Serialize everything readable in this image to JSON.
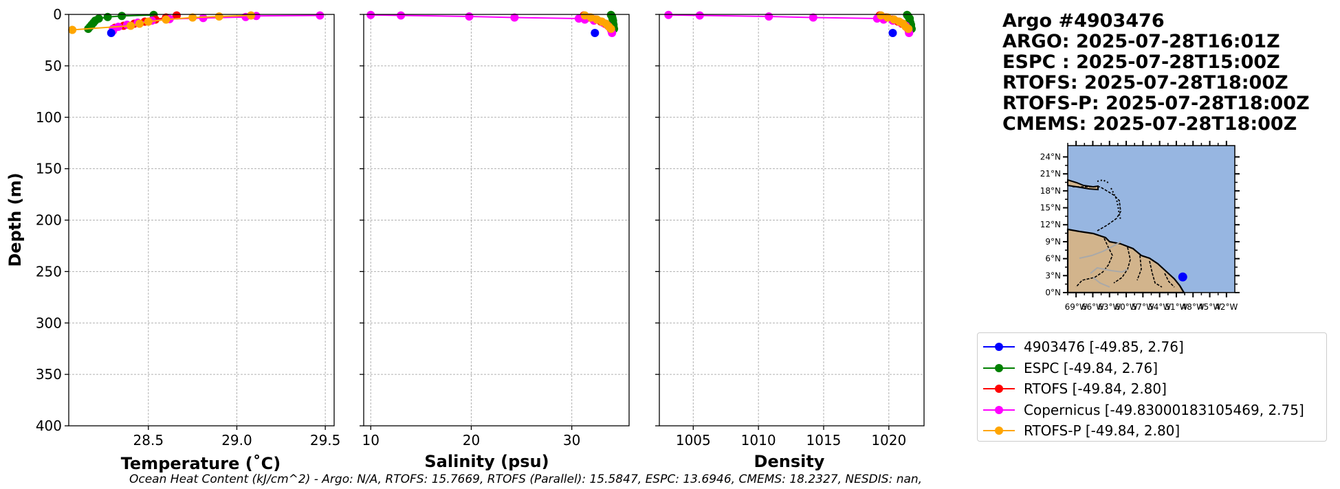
{
  "header": {
    "lines": [
      "Argo #4903476",
      "ARGO: 2025-07-28T16:01Z",
      "ESPC : 2025-07-28T15:00Z",
      "RTOFS: 2025-07-28T18:00Z",
      "RTOFS-P: 2025-07-28T18:00Z",
      "CMEMS: 2025-07-28T18:00Z"
    ]
  },
  "legend": [
    {
      "label": "4903476 [-49.85, 2.76]",
      "color": "#0000ff"
    },
    {
      "label": "ESPC [-49.84, 2.76]",
      "color": "#008000"
    },
    {
      "label": "RTOFS [-49.84, 2.80]",
      "color": "#ff0000"
    },
    {
      "label": "Copernicus [-49.83000183105469, 2.75]",
      "color": "#ff00ff"
    },
    {
      "label": "RTOFS-P [-49.84, 2.80]",
      "color": "#ffa500"
    }
  ],
  "footnote": "Ocean Heat Content (kJ/cm^2) - Argo: N/A,  RTOFS: 15.7669,  RTOFS (Parallel): 15.5847,  ESPC: 13.6946,  CMEMS: 18.2327,  NESDIS: nan,",
  "map": {
    "lat_ticks": [
      "0°N",
      "3°N",
      "6°N",
      "9°N",
      "12°N",
      "15°N",
      "18°N",
      "21°N",
      "24°N"
    ],
    "lon_ticks": [
      "69°W",
      "66°W",
      "63°W",
      "60°W",
      "57°W",
      "54°W",
      "51°W",
      "48°W",
      "45°W",
      "42°W"
    ],
    "float_position": {
      "lon": -49.85,
      "lat": 2.76
    },
    "ocean_color": "#97b6e1",
    "land_color": "#d2b48c"
  },
  "chart_data": [
    {
      "type": "line",
      "xlabel": "Temperature (˚C)",
      "ylabel": "Depth (m)",
      "xlim": [
        28.05,
        29.55
      ],
      "ylim": [
        400,
        0
      ],
      "xticks": [
        28.5,
        29.0,
        29.5
      ],
      "xtick_labels": [
        "28.5",
        "29.0",
        "29.5"
      ],
      "yticks": [
        0,
        50,
        100,
        150,
        200,
        250,
        300,
        350,
        400
      ],
      "ytick_labels": [
        "0",
        "50",
        "100",
        "150",
        "200",
        "250",
        "300",
        "350",
        "400"
      ],
      "grid": true,
      "series": [
        {
          "name": "ESPC",
          "color": "#008000",
          "points": [
            [
              28.53,
              0.5
            ],
            [
              28.35,
              1.5
            ],
            [
              28.27,
              2.5
            ],
            [
              28.22,
              4
            ],
            [
              28.2,
              6
            ],
            [
              28.19,
              8
            ],
            [
              28.18,
              10
            ],
            [
              28.17,
              12
            ],
            [
              28.16,
              14
            ]
          ]
        },
        {
          "name": "RTOFS",
          "color": "#ff0000",
          "points": [
            [
              28.66,
              1
            ],
            [
              28.6,
              3
            ],
            [
              28.54,
              5
            ],
            [
              28.48,
              7
            ],
            [
              28.42,
              9
            ],
            [
              28.36,
              11
            ],
            [
              28.31,
              13
            ]
          ]
        },
        {
          "name": "Copernicus",
          "color": "#ff00ff",
          "points": [
            [
              29.47,
              1
            ],
            [
              29.11,
              1.5
            ],
            [
              29.05,
              2.5
            ],
            [
              28.81,
              3.5
            ],
            [
              28.62,
              4.5
            ],
            [
              28.52,
              6
            ],
            [
              28.44,
              8
            ],
            [
              28.38,
              10
            ],
            [
              28.33,
              12
            ],
            [
              28.3,
              14
            ],
            [
              28.3,
              16
            ]
          ]
        },
        {
          "name": "RTOFS-P",
          "color": "#ffa500",
          "points": [
            [
              29.08,
              1
            ],
            [
              28.9,
              2
            ],
            [
              28.75,
              3
            ],
            [
              28.6,
              5
            ],
            [
              28.5,
              7
            ],
            [
              28.45,
              9
            ],
            [
              28.4,
              11
            ],
            [
              28.07,
              15
            ]
          ]
        },
        {
          "name": "4903476",
          "color": "#0000ff",
          "points": [
            [
              28.29,
              18
            ]
          ]
        }
      ]
    },
    {
      "type": "line",
      "xlabel": "Salinity (psu)",
      "ylabel": "",
      "xlim": [
        9.3,
        35.7
      ],
      "ylim": [
        400,
        0
      ],
      "xticks": [
        10,
        20,
        30
      ],
      "xtick_labels": [
        "10",
        "20",
        "30"
      ],
      "yticks": [
        0,
        50,
        100,
        150,
        200,
        250,
        300,
        350,
        400
      ],
      "grid": true,
      "series": [
        {
          "name": "ESPC",
          "color": "#008000",
          "points": [
            [
              33.9,
              0.5
            ],
            [
              34.0,
              2
            ],
            [
              34.05,
              4
            ],
            [
              34.1,
              6
            ],
            [
              34.1,
              8
            ],
            [
              34.15,
              10
            ],
            [
              34.15,
              12
            ],
            [
              34.2,
              14
            ]
          ]
        },
        {
          "name": "RTOFS",
          "color": "#ff0000",
          "points": [
            [
              31.2,
              1
            ],
            [
              31.8,
              3
            ],
            [
              32.4,
              5
            ],
            [
              32.9,
              7
            ],
            [
              33.3,
              9
            ],
            [
              33.6,
              11
            ]
          ]
        },
        {
          "name": "Copernicus",
          "color": "#ff00ff",
          "points": [
            [
              10,
              0.5
            ],
            [
              13,
              1
            ],
            [
              19.8,
              2
            ],
            [
              24.3,
              3
            ],
            [
              30.7,
              4
            ],
            [
              31.3,
              5
            ],
            [
              32.2,
              6
            ],
            [
              33.1,
              8
            ],
            [
              33.6,
              11
            ],
            [
              33.9,
              15
            ],
            [
              34.0,
              18
            ]
          ]
        },
        {
          "name": "RTOFS-P",
          "color": "#ffa500",
          "points": [
            [
              31.3,
              1
            ],
            [
              31.9,
              3
            ],
            [
              32.5,
              5
            ],
            [
              33.0,
              7
            ],
            [
              33.4,
              9
            ],
            [
              33.7,
              12
            ],
            [
              33.9,
              14
            ]
          ]
        },
        {
          "name": "4903476",
          "color": "#0000ff",
          "points": [
            [
              32.3,
              18
            ]
          ]
        }
      ]
    },
    {
      "type": "line",
      "xlabel": "Density",
      "ylabel": "",
      "xlim": [
        1002.4,
        1022.7
      ],
      "ylim": [
        400,
        0
      ],
      "xticks": [
        1005,
        1010,
        1015,
        1020
      ],
      "xtick_labels": [
        "1005",
        "1010",
        "1015",
        "1020"
      ],
      "yticks": [
        0,
        50,
        100,
        150,
        200,
        250,
        300,
        350,
        400
      ],
      "grid": true,
      "series": [
        {
          "name": "ESPC",
          "color": "#008000",
          "points": [
            [
              1021.4,
              0.5
            ],
            [
              1021.5,
              2
            ],
            [
              1021.6,
              4
            ],
            [
              1021.6,
              6
            ],
            [
              1021.65,
              8
            ],
            [
              1021.7,
              10
            ],
            [
              1021.7,
              12
            ],
            [
              1021.75,
              14
            ]
          ]
        },
        {
          "name": "RTOFS",
          "color": "#ff0000",
          "points": [
            [
              1019.3,
              1
            ],
            [
              1019.8,
              3
            ],
            [
              1020.3,
              5
            ],
            [
              1020.7,
              7
            ],
            [
              1021.0,
              9
            ],
            [
              1021.3,
              11
            ]
          ]
        },
        {
          "name": "Copernicus",
          "color": "#ff00ff",
          "points": [
            [
              1003.1,
              0.5
            ],
            [
              1005.5,
              1
            ],
            [
              1010.8,
              2
            ],
            [
              1014.2,
              3
            ],
            [
              1019.1,
              4
            ],
            [
              1019.6,
              5
            ],
            [
              1020.3,
              6
            ],
            [
              1020.9,
              8
            ],
            [
              1021.3,
              11
            ],
            [
              1021.5,
              15
            ],
            [
              1021.55,
              18
            ]
          ]
        },
        {
          "name": "RTOFS-P",
          "color": "#ffa500",
          "points": [
            [
              1019.4,
              1
            ],
            [
              1019.9,
              3
            ],
            [
              1020.4,
              5
            ],
            [
              1020.8,
              7
            ],
            [
              1021.1,
              9
            ],
            [
              1021.3,
              12
            ],
            [
              1021.5,
              14
            ]
          ]
        },
        {
          "name": "4903476",
          "color": "#0000ff",
          "points": [
            [
              1020.3,
              18
            ]
          ]
        }
      ]
    }
  ]
}
